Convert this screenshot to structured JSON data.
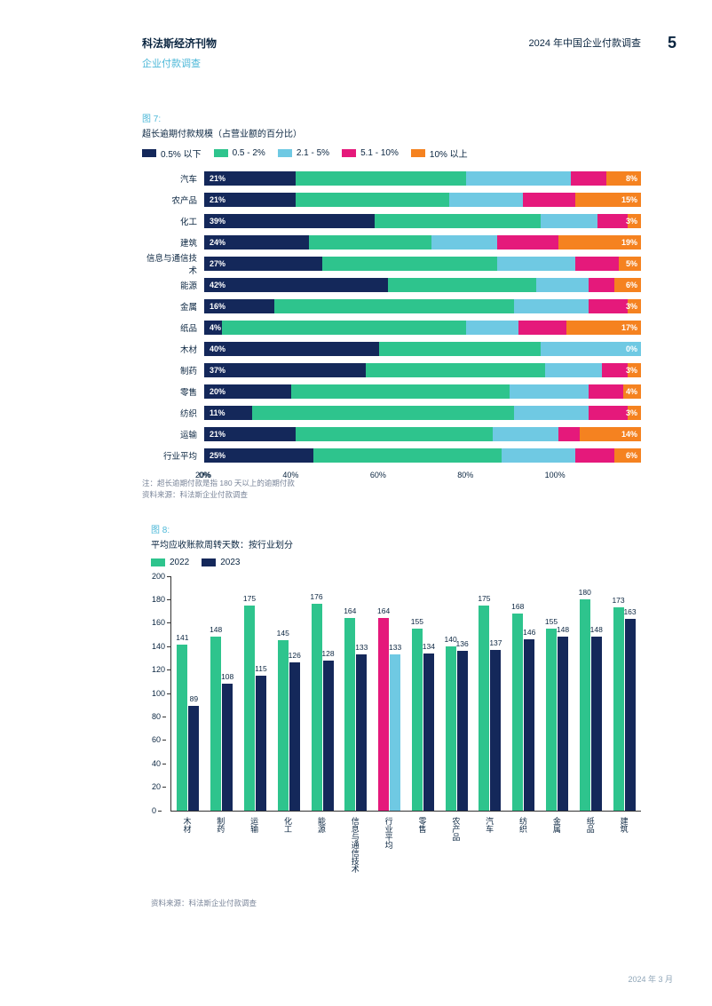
{
  "header": {
    "brand": "科法斯经济刊物",
    "report_title": "2024 年中国企业付款调查",
    "subtitle": "企业付款调查",
    "page_number": "5"
  },
  "footer": {
    "date": "2024 年 3 月"
  },
  "colors": {
    "navy": "#14285a",
    "green": "#2ec48d",
    "lightblue": "#6fc9e3",
    "magenta": "#e5197b",
    "orange": "#f58220",
    "grey_text": "#7a8599",
    "cyan_label": "#4db8d8"
  },
  "chart7": {
    "fig_label": "图 7:",
    "title": "超长逾期付款规模（占营业额的百分比）",
    "legend": [
      {
        "label": "0.5% 以下",
        "color": "#14285a"
      },
      {
        "label": "0.5 - 2%",
        "color": "#2ec48d"
      },
      {
        "label": "2.1 - 5%",
        "color": "#6fc9e3"
      },
      {
        "label": "5.1 - 10%",
        "color": "#e5197b"
      },
      {
        "label": "10% 以上",
        "color": "#f58220"
      }
    ],
    "rows": [
      {
        "label": "汽车",
        "segs": [
          21,
          39,
          24,
          8,
          8
        ],
        "first": "21%",
        "last": "8%"
      },
      {
        "label": "农产品",
        "segs": [
          21,
          35,
          17,
          12,
          15
        ],
        "first": "21%",
        "last": "15%"
      },
      {
        "label": "化工",
        "segs": [
          39,
          38,
          13,
          7,
          3
        ],
        "first": "39%",
        "last": "3%"
      },
      {
        "label": "建筑",
        "segs": [
          24,
          28,
          15,
          14,
          19
        ],
        "first": "24%",
        "last": "19%"
      },
      {
        "label": "信息与通信技术",
        "segs": [
          27,
          40,
          18,
          10,
          5
        ],
        "first": "27%",
        "last": "5%"
      },
      {
        "label": "能源",
        "segs": [
          42,
          34,
          12,
          6,
          6
        ],
        "first": "42%",
        "last": "6%"
      },
      {
        "label": "金属",
        "segs": [
          16,
          55,
          17,
          9,
          3
        ],
        "first": "16%",
        "last": "3%"
      },
      {
        "label": "纸品",
        "segs": [
          4,
          56,
          12,
          11,
          17
        ],
        "first": "4%",
        "last": "17%"
      },
      {
        "label": "木材",
        "segs": [
          40,
          37,
          23,
          0,
          0
        ],
        "first": "40%",
        "last": "0%"
      },
      {
        "label": "制药",
        "segs": [
          37,
          41,
          13,
          6,
          3
        ],
        "first": "37%",
        "last": "3%"
      },
      {
        "label": "零售",
        "segs": [
          20,
          50,
          18,
          8,
          4
        ],
        "first": "20%",
        "last": "4%"
      },
      {
        "label": "纺织",
        "segs": [
          11,
          60,
          17,
          9,
          3
        ],
        "first": "11%",
        "last": "3%"
      },
      {
        "label": "运输",
        "segs": [
          21,
          45,
          15,
          5,
          14
        ],
        "first": "21%",
        "last": "14%"
      },
      {
        "label": "行业平均",
        "segs": [
          25,
          43,
          17,
          9,
          6
        ],
        "first": "25%",
        "last": "6%"
      }
    ],
    "xaxis": [
      "0%",
      "20%",
      "40%",
      "60%",
      "80%",
      "100%"
    ],
    "note1": "注：超长逾期付款是指 180 天以上的逾期付款",
    "note2": "资料来源：科法斯企业付款调查"
  },
  "chart8": {
    "fig_label": "图 8:",
    "title": "平均应收账款周转天数：按行业划分",
    "legend": [
      {
        "label": "2022",
        "color": "#2ec48d"
      },
      {
        "label": "2023",
        "color": "#14285a"
      }
    ],
    "ymax": 200,
    "yticks": [
      0,
      20,
      40,
      60,
      80,
      100,
      120,
      140,
      160,
      180,
      200
    ],
    "groups": [
      {
        "label": "木材",
        "a": 141,
        "b": 89,
        "ca": "#2ec48d",
        "cb": "#14285a"
      },
      {
        "label": "制药",
        "a": 148,
        "b": 108,
        "ca": "#2ec48d",
        "cb": "#14285a"
      },
      {
        "label": "运输",
        "a": 175,
        "b": 115,
        "ca": "#2ec48d",
        "cb": "#14285a"
      },
      {
        "label": "化工",
        "a": 145,
        "b": 126,
        "ca": "#2ec48d",
        "cb": "#14285a"
      },
      {
        "label": "能源",
        "a": 176,
        "b": 128,
        "ca": "#2ec48d",
        "cb": "#14285a"
      },
      {
        "label": "信息与通信技术",
        "a": 164,
        "b": 133,
        "ca": "#2ec48d",
        "cb": "#14285a"
      },
      {
        "label": "行业平均",
        "a": 164,
        "b": 133,
        "ca": "#e5197b",
        "cb": "#6fc9e3"
      },
      {
        "label": "零售",
        "a": 155,
        "b": 134,
        "ca": "#2ec48d",
        "cb": "#14285a"
      },
      {
        "label": "农产品",
        "a": 140,
        "b": 136,
        "ca": "#2ec48d",
        "cb": "#14285a"
      },
      {
        "label": "汽车",
        "a": 175,
        "b": 137,
        "ca": "#2ec48d",
        "cb": "#14285a"
      },
      {
        "label": "纺织",
        "a": 168,
        "b": 146,
        "ca": "#2ec48d",
        "cb": "#14285a"
      },
      {
        "label": "金属",
        "a": 155,
        "b": 148,
        "ca": "#2ec48d",
        "cb": "#14285a"
      },
      {
        "label": "纸品",
        "a": 180,
        "b": 148,
        "ca": "#2ec48d",
        "cb": "#14285a"
      },
      {
        "label": "建筑",
        "a": 173,
        "b": 163,
        "ca": "#2ec48d",
        "cb": "#14285a"
      }
    ],
    "note": "资料来源：科法斯企业付款调查"
  }
}
